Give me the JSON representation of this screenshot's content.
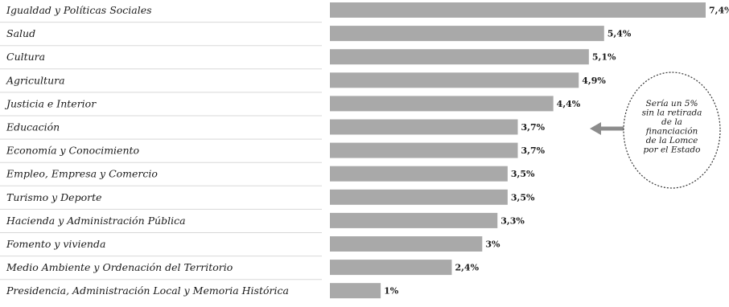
{
  "chart_data": {
    "type": "bar",
    "orientation": "horizontal",
    "categories": [
      "Igualdad y Políticas Sociales",
      "Salud",
      "Cultura",
      "Agricultura",
      "Justicia e Interior",
      "Educación",
      "Economía y Conocimiento",
      "Empleo, Empresa y Comercio",
      "Turismo y Deporte",
      "Hacienda y Administración Pública",
      "Fomento y vivienda",
      "Medio Ambiente y Ordenación del Territorio",
      "Presidencia, Administración Local y Memoria Histórica"
    ],
    "values": [
      7.4,
      5.4,
      5.1,
      4.9,
      4.4,
      3.7,
      3.7,
      3.5,
      3.5,
      3.3,
      3,
      2.4,
      1
    ],
    "value_labels": [
      "7,4%",
      "5,4%",
      "5,1%",
      "4,9%",
      "4,4%",
      "3,7%",
      "3,7%",
      "3,5%",
      "3,5%",
      "3,3%",
      "3%",
      "2,4%",
      "1%"
    ],
    "xlim": [
      0,
      7.4
    ],
    "grid": false,
    "annotation": {
      "target_category": "Educación",
      "lines": [
        "Sería un 5%",
        "sin la retirada",
        "de la",
        "financiación",
        "de la Lomce",
        "por el Estado"
      ]
    }
  },
  "colors": {
    "bar": "#a9a9a9",
    "text": "#1a1a1a",
    "arrow": "#8c8c8c"
  }
}
